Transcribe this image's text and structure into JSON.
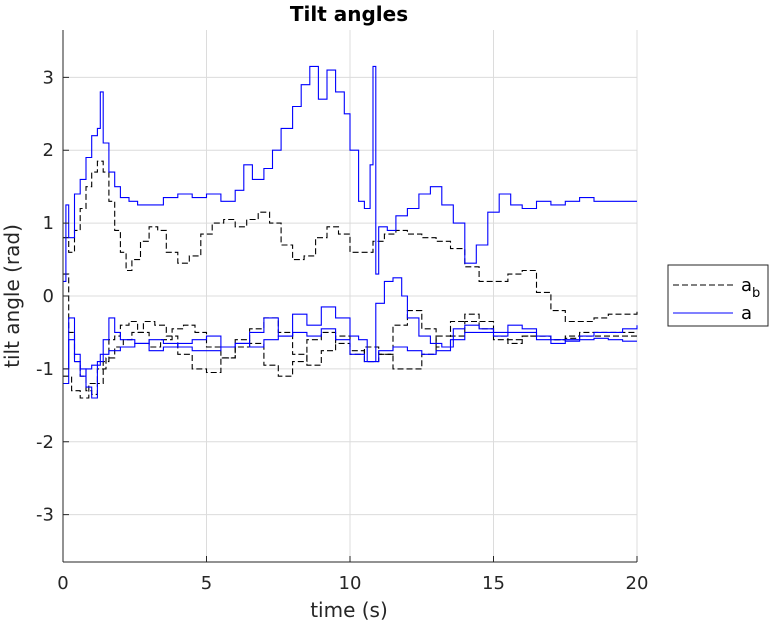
{
  "chart_data": {
    "type": "line",
    "title": "Tilt angles",
    "xlabel": "time (s)",
    "ylabel": "tilt angle (rad)",
    "xlim": [
      0,
      20
    ],
    "ylim": [
      -3.65,
      3.65
    ],
    "xticks": [
      0,
      5,
      10,
      15,
      20
    ],
    "yticks": [
      -3,
      -2,
      -1,
      0,
      1,
      2,
      3
    ],
    "xtick_labels": [
      "0",
      "5",
      "10",
      "15",
      "20"
    ],
    "ytick_labels": [
      "-3",
      "-2",
      "-1",
      "0",
      "1",
      "2",
      "3"
    ],
    "grid": true,
    "legend_position": "outside-right",
    "legend": [
      {
        "label": "a",
        "subscript": "b",
        "style": "dashed",
        "color": "#000000"
      },
      {
        "label": "a",
        "subscript": "",
        "style": "solid",
        "color": "#0000ff"
      }
    ],
    "series": [
      {
        "group": "a_b",
        "color": "#000000",
        "style": "dashed",
        "x": [
          0,
          0.2,
          0.4,
          0.6,
          0.8,
          1.0,
          1.2,
          1.4,
          1.6,
          1.8,
          2.0,
          2.2,
          2.4,
          2.7,
          3.0,
          3.3,
          3.6,
          4.0,
          4.4,
          4.8,
          5.2,
          5.6,
          6.0,
          6.4,
          6.8,
          7.2,
          7.6,
          8.0,
          8.4,
          8.8,
          9.2,
          9.6,
          10.0,
          10.4,
          10.8,
          11.2,
          11.6,
          12.0,
          12.5,
          13.0,
          13.5,
          14.0,
          14.5,
          15.0,
          15.5,
          16.0,
          16.5,
          17.0,
          17.5,
          18.0,
          18.5,
          19.0,
          19.5,
          20.0
        ],
        "y": [
          0.8,
          0.6,
          0.9,
          1.2,
          1.5,
          1.7,
          1.85,
          1.7,
          1.3,
          0.9,
          0.6,
          0.35,
          0.5,
          0.75,
          0.95,
          0.9,
          0.6,
          0.45,
          0.55,
          0.85,
          1.0,
          1.05,
          0.95,
          1.05,
          1.15,
          1.0,
          0.7,
          0.5,
          0.55,
          0.8,
          0.95,
          0.85,
          0.6,
          0.6,
          0.75,
          0.85,
          0.9,
          0.85,
          0.8,
          0.75,
          0.65,
          0.4,
          0.2,
          0.2,
          0.3,
          0.35,
          0.05,
          -0.2,
          -0.35,
          -0.35,
          -0.3,
          -0.25,
          -0.25,
          -0.2
        ]
      },
      {
        "group": "a_b",
        "color": "#000000",
        "style": "dashed",
        "x": [
          0,
          0.2,
          0.4,
          0.6,
          0.8,
          1.0,
          1.2,
          1.4,
          1.6,
          1.8,
          2.0,
          2.3,
          2.6,
          3.0,
          3.4,
          3.8,
          4.2,
          4.6,
          5.0,
          5.5,
          6.0,
          6.5,
          7.0,
          7.5,
          8.0,
          8.5,
          9.0,
          9.5,
          10.0,
          10.5,
          11.0,
          11.5,
          12.0,
          12.5,
          13.0,
          13.5,
          14.0,
          14.5,
          15.0,
          15.5,
          16.0,
          16.5,
          17.0,
          17.5,
          18.0,
          18.5,
          19.0,
          19.5,
          20.0
        ],
        "y": [
          0.3,
          -0.5,
          -0.9,
          -1.1,
          -1.3,
          -1.35,
          -1.2,
          -0.9,
          -0.6,
          -0.55,
          -0.4,
          -0.35,
          -0.5,
          -0.7,
          -0.6,
          -0.45,
          -0.4,
          -0.5,
          -0.7,
          -0.85,
          -0.7,
          -0.45,
          -0.3,
          -0.5,
          -0.8,
          -0.95,
          -0.75,
          -0.55,
          -0.75,
          -0.9,
          -0.8,
          -0.4,
          -0.2,
          -0.45,
          -0.7,
          -0.55,
          -0.35,
          -0.45,
          -0.6,
          -0.6,
          -0.55,
          -0.55,
          -0.6,
          -0.58,
          -0.55,
          -0.55,
          -0.55,
          -0.55,
          -0.55
        ]
      },
      {
        "group": "a_b",
        "color": "#000000",
        "style": "dashed",
        "x": [
          0,
          0.3,
          0.6,
          0.9,
          1.2,
          1.5,
          1.8,
          2.1,
          2.4,
          2.8,
          3.2,
          3.6,
          4.0,
          4.5,
          5.0,
          5.5,
          6.0,
          6.5,
          7.0,
          7.5,
          8.0,
          8.5,
          9.0,
          9.5,
          10.0,
          10.5,
          11.0,
          11.5,
          12.0,
          12.5,
          13.0,
          13.5,
          14.0,
          14.5,
          15.0,
          15.5,
          16.0,
          16.5,
          17.0,
          17.5,
          18.0,
          18.5,
          19.0,
          19.5,
          20.0
        ],
        "y": [
          -1.1,
          -1.3,
          -1.4,
          -1.2,
          -1.0,
          -0.85,
          -0.7,
          -0.6,
          -0.5,
          -0.35,
          -0.4,
          -0.55,
          -0.8,
          -1.0,
          -1.05,
          -0.85,
          -0.6,
          -0.65,
          -0.95,
          -1.1,
          -0.9,
          -0.6,
          -0.5,
          -0.65,
          -0.8,
          -0.7,
          -0.8,
          -1.0,
          -1.0,
          -0.8,
          -0.55,
          -0.35,
          -0.25,
          -0.35,
          -0.55,
          -0.65,
          -0.55,
          -0.55,
          -0.6,
          -0.55,
          -0.5,
          -0.5,
          -0.5,
          -0.5,
          -0.5
        ]
      },
      {
        "group": "a",
        "color": "#0000ff",
        "style": "solid",
        "x": [
          0,
          0.1,
          0.2,
          0.4,
          0.6,
          0.8,
          1.0,
          1.2,
          1.3,
          1.4,
          1.6,
          1.8,
          2.0,
          2.3,
          2.6,
          3.0,
          3.5,
          4.0,
          4.5,
          5.0,
          5.5,
          6.0,
          6.3,
          6.6,
          7.0,
          7.3,
          7.6,
          8.0,
          8.3,
          8.6,
          8.9,
          9.2,
          9.5,
          9.8,
          10.0,
          10.3,
          10.5,
          10.7,
          10.8,
          10.9,
          11.0,
          11.3,
          11.6,
          12.0,
          12.4,
          12.8,
          13.2,
          13.6,
          14.0,
          14.4,
          14.8,
          15.2,
          15.6,
          16.0,
          16.5,
          17.0,
          17.5,
          18.0,
          18.5,
          19.0,
          19.5,
          20.0
        ],
        "y": [
          0.2,
          1.25,
          0.8,
          1.4,
          1.6,
          1.9,
          2.2,
          2.3,
          2.8,
          2.1,
          1.7,
          1.5,
          1.35,
          1.3,
          1.25,
          1.25,
          1.35,
          1.4,
          1.35,
          1.4,
          1.3,
          1.45,
          1.8,
          1.6,
          1.75,
          2.0,
          2.3,
          2.6,
          2.9,
          3.15,
          2.7,
          3.1,
          2.8,
          2.5,
          2.0,
          1.3,
          1.2,
          1.8,
          3.15,
          0.3,
          0.95,
          0.9,
          1.1,
          1.2,
          1.4,
          1.5,
          1.25,
          1.0,
          0.45,
          0.7,
          1.15,
          1.4,
          1.25,
          1.2,
          1.3,
          1.25,
          1.3,
          1.35,
          1.3,
          1.3,
          1.3,
          1.3
        ]
      },
      {
        "group": "a",
        "color": "#0000ff",
        "style": "solid",
        "x": [
          0,
          0.2,
          0.4,
          0.6,
          0.8,
          1.0,
          1.2,
          1.4,
          1.6,
          1.8,
          2.0,
          2.5,
          3.0,
          3.5,
          4.0,
          4.5,
          5.0,
          5.5,
          6.0,
          6.5,
          7.0,
          7.5,
          8.0,
          8.5,
          9.0,
          9.5,
          10.0,
          10.3,
          10.6,
          10.9,
          11.2,
          11.5,
          11.8,
          12.0,
          12.4,
          12.8,
          13.2,
          13.6,
          14.0,
          14.5,
          15.0,
          15.5,
          16.0,
          16.5,
          17.0,
          17.5,
          18.0,
          18.5,
          19.0,
          19.5,
          20.0
        ],
        "y": [
          -1.2,
          -0.3,
          -0.8,
          -1.0,
          -1.25,
          -1.4,
          -0.9,
          -0.6,
          -0.3,
          -0.5,
          -0.6,
          -0.65,
          -0.75,
          -0.7,
          -0.65,
          -0.6,
          -0.55,
          -0.7,
          -0.65,
          -0.5,
          -0.3,
          -0.55,
          -0.25,
          -0.4,
          -0.15,
          -0.3,
          -0.55,
          -0.6,
          -0.9,
          -0.1,
          0.2,
          0.25,
          0.0,
          -0.3,
          -0.55,
          -0.65,
          -0.7,
          -0.45,
          -0.4,
          -0.45,
          -0.5,
          -0.4,
          -0.45,
          -0.6,
          -0.65,
          -0.6,
          -0.55,
          -0.5,
          -0.5,
          -0.45,
          -0.4
        ]
      },
      {
        "group": "a",
        "color": "#0000ff",
        "style": "solid",
        "x": [
          0,
          0.2,
          0.4,
          0.6,
          0.8,
          1.0,
          1.3,
          1.6,
          2.0,
          2.5,
          3.0,
          3.5,
          4.0,
          4.5,
          5.0,
          5.5,
          6.0,
          6.5,
          7.0,
          7.5,
          8.0,
          8.5,
          9.0,
          9.5,
          10.0,
          10.5,
          11.0,
          11.5,
          12.0,
          12.5,
          13.0,
          13.5,
          14.0,
          14.5,
          15.0,
          15.5,
          16.0,
          16.5,
          17.0,
          17.5,
          18.0,
          18.5,
          19.0,
          19.5,
          20.0
        ],
        "y": [
          -1.0,
          -0.6,
          -0.9,
          -1.1,
          -1.0,
          -0.95,
          -0.8,
          -0.75,
          -0.7,
          -0.65,
          -0.6,
          -0.65,
          -0.7,
          -0.75,
          -0.75,
          -0.7,
          -0.65,
          -0.7,
          -0.6,
          -0.55,
          -0.5,
          -0.55,
          -0.45,
          -0.6,
          -0.8,
          -0.9,
          -0.75,
          -0.7,
          -0.75,
          -0.8,
          -0.75,
          -0.6,
          -0.5,
          -0.5,
          -0.55,
          -0.5,
          -0.5,
          -0.55,
          -0.6,
          -0.62,
          -0.6,
          -0.58,
          -0.6,
          -0.62,
          -0.62
        ]
      }
    ]
  }
}
